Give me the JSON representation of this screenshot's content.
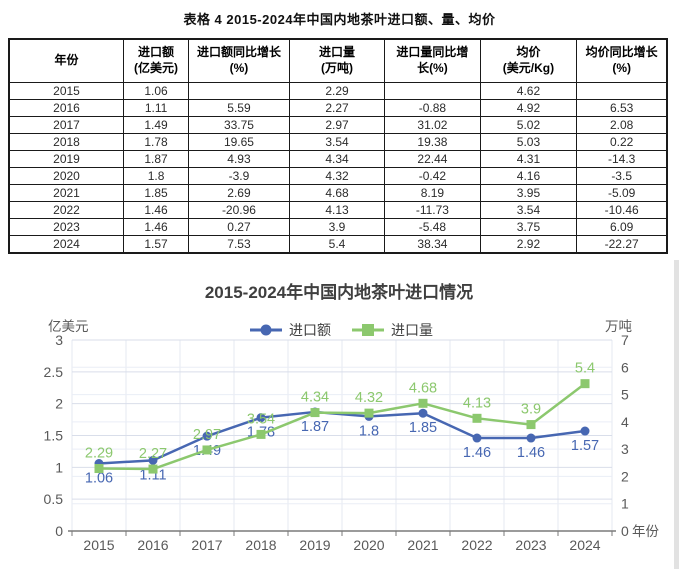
{
  "page": {
    "doc_title": "表格 4 2015-2024年中国内地茶叶进口额、量、均价"
  },
  "table": {
    "columns": [
      "年份",
      "进口额\n(亿美元)",
      "进口额同比增长\n(%)",
      "进口量\n(万吨)",
      "进口量同比增\n长(%)",
      "均价\n(美元/Kg)",
      "均价同比增长\n(%)"
    ],
    "col_widths_pct": [
      17.4,
      9.9,
      15.3,
      14.5,
      14.5,
      14.7,
      13.7
    ],
    "rows": [
      [
        "2015",
        "1.06",
        "",
        "2.29",
        "",
        "4.62",
        ""
      ],
      [
        "2016",
        "1.11",
        "5.59",
        "2.27",
        "-0.88",
        "4.92",
        "6.53"
      ],
      [
        "2017",
        "1.49",
        "33.75",
        "2.97",
        "31.02",
        "5.02",
        "2.08"
      ],
      [
        "2018",
        "1.78",
        "19.65",
        "3.54",
        "19.38",
        "5.03",
        "0.22"
      ],
      [
        "2019",
        "1.87",
        "4.93",
        "4.34",
        "22.44",
        "4.31",
        "-14.3"
      ],
      [
        "2020",
        "1.8",
        "-3.9",
        "4.32",
        "-0.42",
        "4.16",
        "-3.5"
      ],
      [
        "2021",
        "1.85",
        "2.69",
        "4.68",
        "8.19",
        "3.95",
        "-5.09"
      ],
      [
        "2022",
        "1.46",
        "-20.96",
        "4.13",
        "-11.73",
        "3.54",
        "-10.46"
      ],
      [
        "2023",
        "1.46",
        "0.27",
        "3.9",
        "-5.48",
        "3.75",
        "6.09"
      ],
      [
        "2024",
        "1.57",
        "7.53",
        "5.4",
        "38.34",
        "2.92",
        "-22.27"
      ]
    ]
  },
  "chart_data": {
    "type": "line",
    "title": "2015-2024年中国内地茶叶进口情况",
    "categories": [
      "2015",
      "2016",
      "2017",
      "2018",
      "2019",
      "2020",
      "2021",
      "2022",
      "2023",
      "2024"
    ],
    "series": [
      {
        "name": "进口额",
        "axis": "left",
        "marker": "circle",
        "color": "#4767b2",
        "values": [
          1.06,
          1.11,
          1.49,
          1.78,
          1.87,
          1.8,
          1.85,
          1.46,
          1.46,
          1.57
        ]
      },
      {
        "name": "进口量",
        "axis": "right",
        "marker": "square",
        "color": "#8cc86e",
        "values": [
          2.29,
          2.27,
          2.97,
          3.54,
          4.34,
          4.32,
          4.68,
          4.13,
          3.9,
          5.4
        ]
      }
    ],
    "left_axis": {
      "label": "亿美元",
      "min": 0,
      "max": 3,
      "step": 0.5
    },
    "right_axis": {
      "label": "万吨",
      "min": 0,
      "max": 7,
      "step": 1
    },
    "x_axis": {
      "label": "年份"
    },
    "legend_position": "top",
    "grid": true,
    "data_labels": true
  },
  "colors": {
    "title_text": "#3f3f3f",
    "tick_text": "#595959",
    "grid_left": "#d9deea",
    "grid_right": "#eaeef6",
    "grid_vertical": "#e4e8f1",
    "axis_line": "#7a7a7a",
    "series_blue": "#4767b2",
    "series_green": "#8cc86e",
    "table_border": "#1a1a1a"
  }
}
